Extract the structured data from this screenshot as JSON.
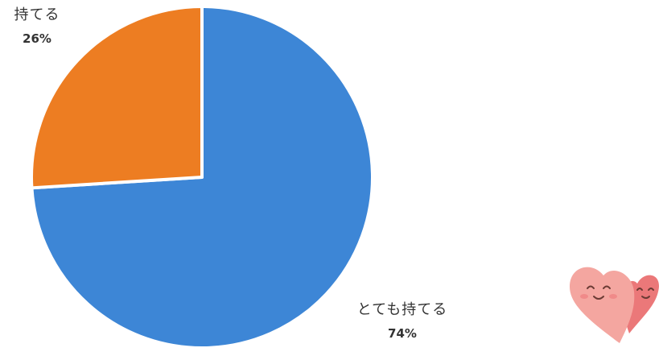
{
  "chart_data": {
    "type": "pie",
    "start_angle_deg": 0,
    "direction": "clockwise",
    "slices": [
      {
        "label": "とても持てる",
        "value": 74,
        "value_label": "74%",
        "color": "#3d86d6"
      },
      {
        "label": "持てる",
        "value": 26,
        "value_label": "26%",
        "color": "#ed7d22"
      }
    ],
    "legend": "none",
    "slice_border_color": "#ffffff"
  },
  "decorations": {
    "heart_icon": "smiling-hearts-illustration",
    "heart_colors": [
      "#f4a6a0",
      "#e9696a"
    ]
  }
}
